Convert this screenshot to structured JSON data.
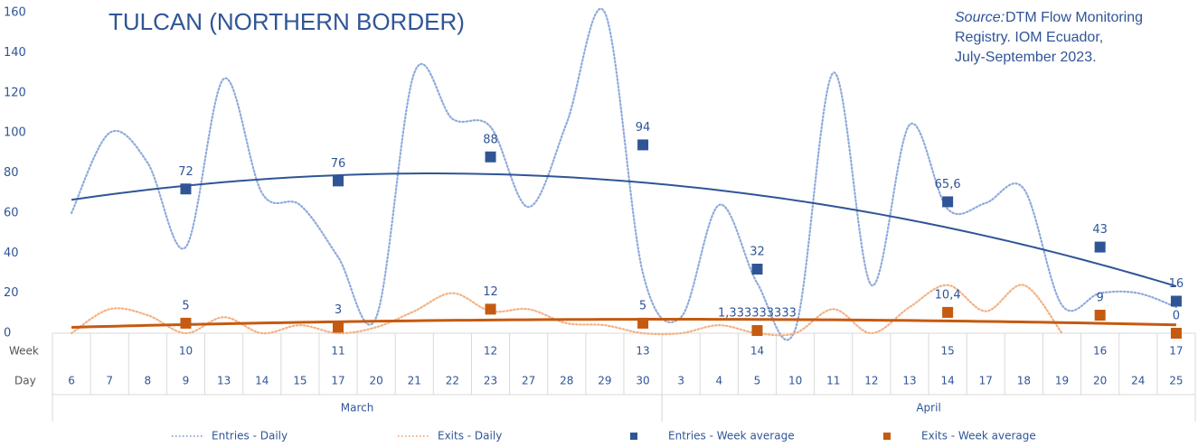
{
  "chart_data": {
    "type": "line",
    "title": "TULCAN (NORTHERN BORDER)",
    "source_prefix": "Source:",
    "source": "DTM Flow Monitoring Registry. IOM Ecuador, July-September 2023.",
    "week_row_label": "Week",
    "day_row_label": "Day",
    "categories": [
      "6",
      "7",
      "8",
      "9",
      "13",
      "14",
      "15",
      "17",
      "20",
      "21",
      "22",
      "23",
      "27",
      "28",
      "29",
      "30",
      "3",
      "4",
      "5",
      "10",
      "11",
      "12",
      "13",
      "14",
      "17",
      "18",
      "19",
      "20",
      "24",
      "25"
    ],
    "weeks": [
      null,
      null,
      null,
      "10",
      null,
      null,
      null,
      "11",
      null,
      null,
      null,
      "12",
      null,
      null,
      null,
      "13",
      null,
      null,
      "14",
      null,
      null,
      null,
      null,
      "15",
      null,
      null,
      null,
      "16",
      null,
      "17"
    ],
    "month_groups": [
      {
        "label": "March",
        "count": 16
      },
      {
        "label": "April",
        "count": 14
      }
    ],
    "ylim": [
      0,
      160
    ],
    "yticks": [
      0,
      20,
      40,
      60,
      80,
      100,
      120,
      140,
      160
    ],
    "trendline": {
      "type": "polynomial",
      "order": 2
    },
    "series": [
      {
        "name": "Entries - Daily",
        "style": "dotted-line",
        "color": "#8faadc",
        "values": [
          60,
          100,
          85,
          43,
          127,
          70,
          64,
          38,
          8,
          130,
          107,
          103,
          63,
          105,
          160,
          30,
          8,
          64,
          25,
          2,
          130,
          24,
          104,
          62,
          65,
          72,
          14,
          20,
          20,
          13
        ]
      },
      {
        "name": "Exits - Daily",
        "style": "dotted-line",
        "color": "#f4b183",
        "values": [
          0,
          12,
          9,
          0,
          8,
          0,
          4,
          0,
          3,
          11,
          20,
          11,
          12,
          5,
          4,
          0,
          0,
          4,
          0,
          0,
          12,
          0,
          13,
          24,
          11,
          24,
          0,
          null,
          null,
          null
        ]
      },
      {
        "name": "Entries - Week average",
        "style": "square",
        "color": "#2f5597",
        "trend_color": "#2f5597",
        "values": [
          null,
          null,
          null,
          72,
          null,
          null,
          null,
          76,
          null,
          null,
          null,
          88,
          null,
          null,
          null,
          94,
          null,
          null,
          32,
          null,
          null,
          null,
          null,
          65.6,
          null,
          null,
          null,
          43,
          null,
          16
        ],
        "value_labels": [
          null,
          null,
          null,
          "72",
          null,
          null,
          null,
          "76",
          null,
          null,
          null,
          "88",
          null,
          null,
          null,
          "94",
          null,
          null,
          "32",
          null,
          null,
          null,
          null,
          "65,6",
          null,
          null,
          null,
          "43",
          null,
          "16"
        ]
      },
      {
        "name": "Exits - Week average",
        "style": "square",
        "color": "#c55a11",
        "trend_color": "#c55a11",
        "values": [
          null,
          null,
          null,
          5,
          null,
          null,
          null,
          3,
          null,
          null,
          null,
          12,
          null,
          null,
          null,
          5,
          null,
          null,
          1.333333333,
          null,
          null,
          null,
          null,
          10.4,
          null,
          null,
          null,
          9,
          null,
          0
        ],
        "value_labels": [
          null,
          null,
          null,
          "5",
          null,
          null,
          null,
          "3",
          null,
          null,
          null,
          "12",
          null,
          null,
          null,
          "5",
          null,
          null,
          "1,333333333",
          null,
          null,
          null,
          null,
          "10,4",
          null,
          null,
          null,
          "9",
          null,
          "0"
        ]
      }
    ]
  }
}
